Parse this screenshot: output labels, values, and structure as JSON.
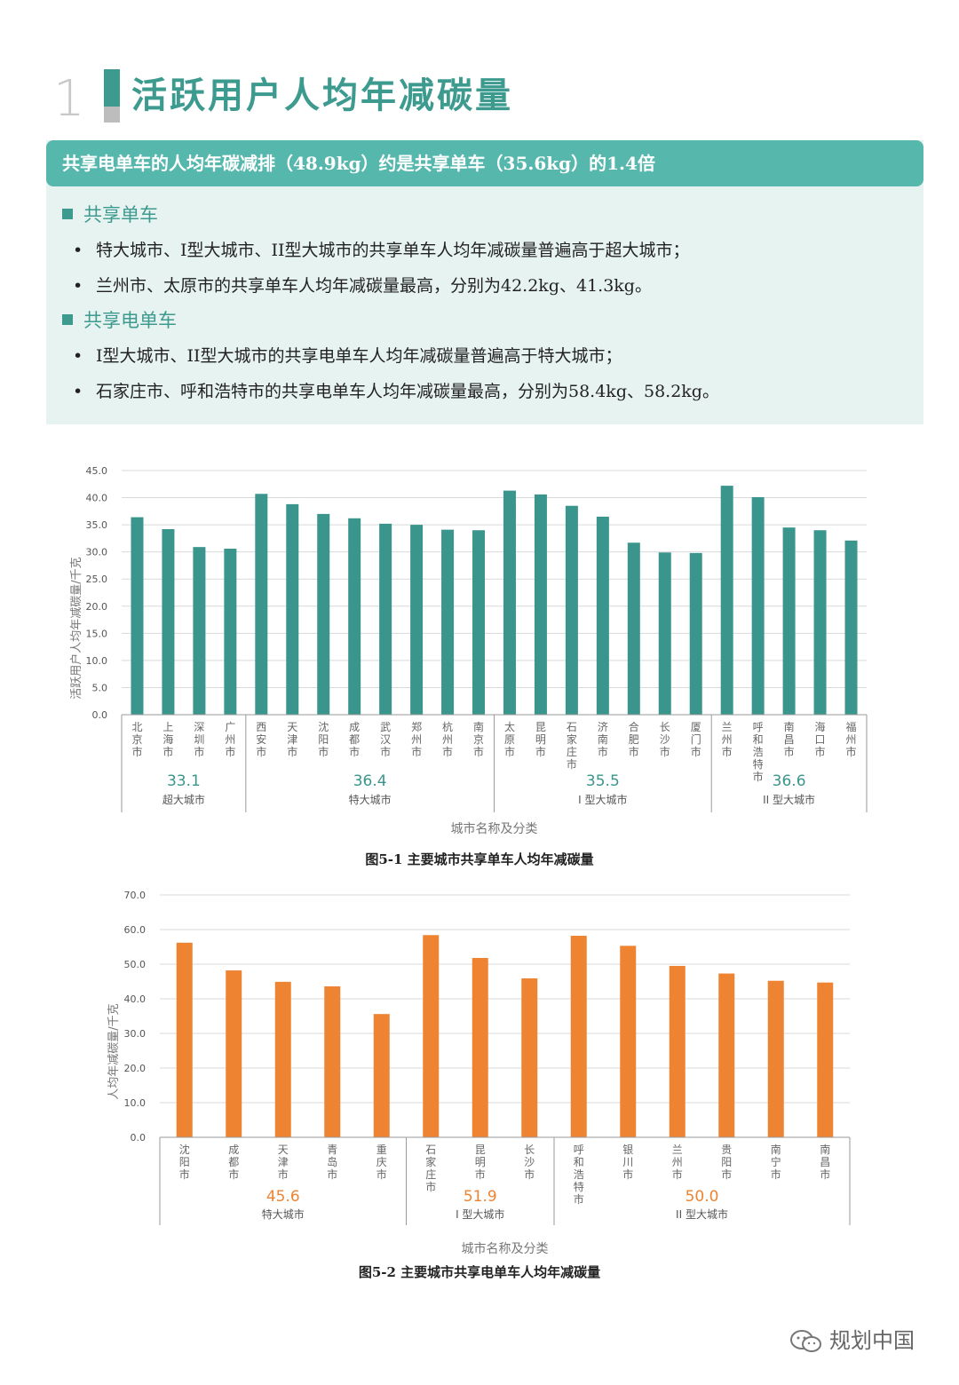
{
  "section": {
    "number": "1",
    "title": "活跃用户人均年减碳量",
    "banner": "共享电单车的人均年碳减排（48.9kg）约是共享单车（35.6kg）的1.4倍",
    "groups": [
      {
        "heading": "共享单车",
        "bullets": [
          "特大城市、I型大城市、II型大城市的共享单车人均年减碳量普遍高于超大城市；",
          "兰州市、太原市的共享单车人均年减碳量最高，分别为42.2kg、41.3kg。"
        ]
      },
      {
        "heading": "共享电单车",
        "bullets": [
          "I型大城市、II型大城市的共享电单车人均年减碳量普遍高于特大城市；",
          "石家庄市、呼和浩特市的共享电单车人均年减碳量最高，分别为58.4kg、58.2kg。"
        ]
      }
    ]
  },
  "colors": {
    "accent": "#3d9a8e",
    "banner": "#56b7ad",
    "panel": "#e7f3f1",
    "bike": "#3a968c",
    "ebike": "#ee8432",
    "grid": "#d9d9d9"
  },
  "chart_data": [
    {
      "type": "bar",
      "title": "图5-1 主要城市共享单车人均年减碳量",
      "xlabel": "城市名称及分类",
      "ylabel": "活跃用户人均年减碳量/千克",
      "ylim": [
        0,
        45
      ],
      "yticks": [
        "0.0",
        "5.0",
        "10.0",
        "15.0",
        "20.0",
        "25.0",
        "30.0",
        "35.0",
        "40.0",
        "45.0"
      ],
      "grid": true,
      "categories": [
        "北京市",
        "上海市",
        "深圳市",
        "广州市",
        "西安市",
        "天津市",
        "沈阳市",
        "成都市",
        "武汉市",
        "郑州市",
        "杭州市",
        "南京市",
        "太原市",
        "昆明市",
        "石家庄市",
        "济南市",
        "合肥市",
        "长沙市",
        "厦门市",
        "兰州市",
        "呼和浩特市",
        "南昌市",
        "海口市",
        "福州市"
      ],
      "values": [
        36.4,
        34.2,
        30.9,
        30.6,
        40.7,
        38.8,
        37.0,
        36.2,
        35.2,
        35.0,
        34.1,
        34.0,
        41.3,
        40.6,
        38.5,
        36.5,
        31.7,
        29.9,
        29.8,
        42.2,
        40.1,
        34.5,
        34.0,
        32.1
      ],
      "groups": [
        {
          "name": "超大城市",
          "average": "33.1",
          "start": 0,
          "count": 4
        },
        {
          "name": "特大城市",
          "average": "36.4",
          "start": 4,
          "count": 8
        },
        {
          "name": "I 型大城市",
          "average": "35.5",
          "start": 12,
          "count": 7
        },
        {
          "name": "II 型大城市",
          "average": "36.6",
          "start": 19,
          "count": 5
        }
      ]
    },
    {
      "type": "bar",
      "title": "图5-2 主要城市共享电单车人均年减碳量",
      "xlabel": "城市名称及分类",
      "ylabel": "人均年减碳量/千克",
      "ylim": [
        0,
        70
      ],
      "yticks": [
        "0.0",
        "10.0",
        "20.0",
        "30.0",
        "40.0",
        "50.0",
        "60.0",
        "70.0"
      ],
      "grid": true,
      "categories": [
        "沈阳市",
        "成都市",
        "天津市",
        "青岛市",
        "重庆市",
        "石家庄市",
        "昆明市",
        "长沙市",
        "呼和浩特市",
        "银川市",
        "兰州市",
        "贵阳市",
        "南宁市",
        "南昌市"
      ],
      "values": [
        56.2,
        48.2,
        44.9,
        43.6,
        35.6,
        58.4,
        51.8,
        45.9,
        58.2,
        55.3,
        49.5,
        47.3,
        45.2,
        44.7
      ],
      "groups": [
        {
          "name": "特大城市",
          "average": "45.6",
          "start": 0,
          "count": 5
        },
        {
          "name": "I 型大城市",
          "average": "51.9",
          "start": 5,
          "count": 3
        },
        {
          "name": "II 型大城市",
          "average": "50.0",
          "start": 8,
          "count": 6
        }
      ]
    }
  ],
  "watermark": {
    "text": "规划中国",
    "icon": "wechat-icon"
  }
}
